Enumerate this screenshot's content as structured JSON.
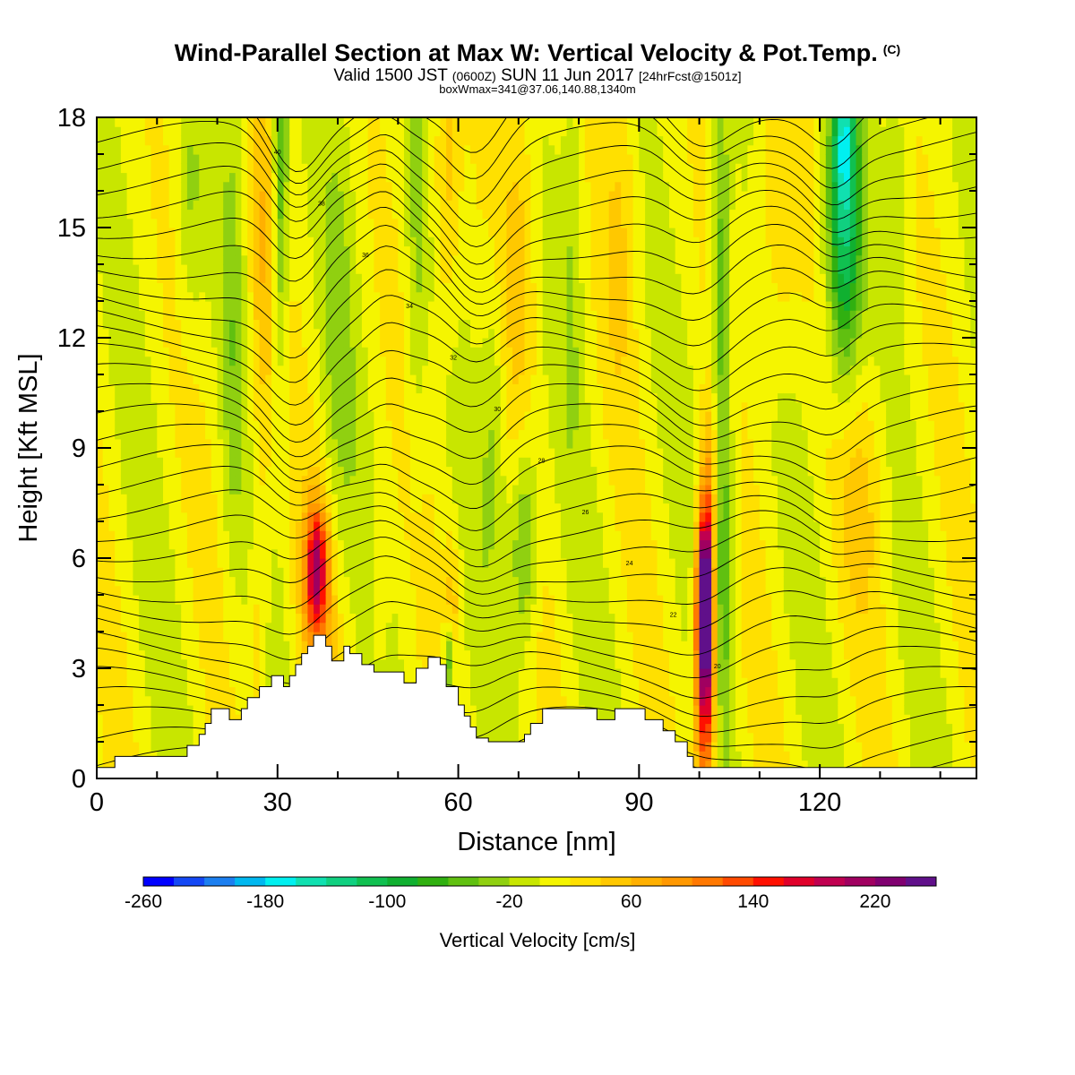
{
  "header": {
    "title": "Wind-Parallel Section at Max W: Vertical Velocity & Pot.Temp.",
    "title_mark": "(C)",
    "valid_prefix": "Valid 1500 JST",
    "valid_utc": "(0600Z)",
    "valid_date": "SUN 11 Jun 2017",
    "forecast": "[24hrFcst@1501z]",
    "box_info": "boxWmax=341@37.06,140.88,1340m"
  },
  "chart_data": {
    "type": "heatmap",
    "xlabel": "Distance [nm]",
    "ylabel": "Height [Kft MSL]",
    "x_ticks": [
      "0",
      "30",
      "60",
      "90",
      "120"
    ],
    "y_ticks": [
      "0",
      "3",
      "6",
      "9",
      "12",
      "15",
      "18"
    ],
    "xlim": [
      0,
      146
    ],
    "ylim": [
      0,
      18
    ],
    "colorbar": {
      "label": "Vertical Velocity [cm/s]",
      "tick_labels": [
        "-260",
        "-180",
        "-100",
        "-20",
        "60",
        "140",
        "220"
      ],
      "levels": [
        -260,
        -240,
        -220,
        -200,
        -180,
        -160,
        -140,
        -120,
        -100,
        -80,
        -60,
        -40,
        -20,
        0,
        20,
        40,
        60,
        80,
        100,
        120,
        140,
        160,
        180,
        200,
        220,
        240
      ],
      "colors": [
        "#0000ff",
        "#1448f5",
        "#1c7ff0",
        "#00b8f0",
        "#00f0f0",
        "#10e0b0",
        "#10d080",
        "#10c050",
        "#10b030",
        "#30b010",
        "#60c010",
        "#90d010",
        "#c8e600",
        "#f5f500",
        "#ffe000",
        "#ffc800",
        "#ffb000",
        "#ff9800",
        "#ff7800",
        "#ff4a00",
        "#ff1000",
        "#e0002a",
        "#c00050",
        "#a00060",
        "#800070",
        "#60108a"
      ]
    },
    "terrain": [
      [
        0,
        0.3
      ],
      [
        3,
        0.3
      ],
      [
        3,
        0.6
      ],
      [
        15,
        0.6
      ],
      [
        15,
        0.9
      ],
      [
        17,
        0.9
      ],
      [
        17,
        1.2
      ],
      [
        18,
        1.2
      ],
      [
        18,
        1.5
      ],
      [
        19,
        1.5
      ],
      [
        19,
        1.9
      ],
      [
        22,
        1.9
      ],
      [
        22,
        1.6
      ],
      [
        24,
        1.6
      ],
      [
        24,
        1.9
      ],
      [
        25,
        1.9
      ],
      [
        25,
        2.2
      ],
      [
        27,
        2.2
      ],
      [
        27,
        2.5
      ],
      [
        29,
        2.5
      ],
      [
        29,
        2.8
      ],
      [
        31,
        2.8
      ],
      [
        31,
        2.5
      ],
      [
        32,
        2.5
      ],
      [
        32,
        2.8
      ],
      [
        33,
        2.8
      ],
      [
        33,
        3.1
      ],
      [
        34,
        3.1
      ],
      [
        34,
        3.4
      ],
      [
        35,
        3.4
      ],
      [
        35,
        3.6
      ],
      [
        36,
        3.6
      ],
      [
        36,
        3.9
      ],
      [
        38,
        3.9
      ],
      [
        38,
        3.6
      ],
      [
        39,
        3.6
      ],
      [
        39,
        3.2
      ],
      [
        41,
        3.2
      ],
      [
        41,
        3.6
      ],
      [
        42,
        3.6
      ],
      [
        42,
        3.4
      ],
      [
        44,
        3.4
      ],
      [
        44,
        3.1
      ],
      [
        46,
        3.1
      ],
      [
        46,
        2.9
      ],
      [
        51,
        2.9
      ],
      [
        51,
        2.6
      ],
      [
        53,
        2.6
      ],
      [
        53,
        3.0
      ],
      [
        55,
        3.0
      ],
      [
        55,
        3.3
      ],
      [
        57,
        3.3
      ],
      [
        57,
        3.1
      ],
      [
        58,
        3.1
      ],
      [
        58,
        2.5
      ],
      [
        60,
        2.5
      ],
      [
        60,
        2.0
      ],
      [
        61,
        2.0
      ],
      [
        61,
        1.7
      ],
      [
        62,
        1.7
      ],
      [
        62,
        1.4
      ],
      [
        63,
        1.4
      ],
      [
        63,
        1.1
      ],
      [
        65,
        1.1
      ],
      [
        65,
        1.0
      ],
      [
        71,
        1.0
      ],
      [
        71,
        1.2
      ],
      [
        72,
        1.2
      ],
      [
        72,
        1.5
      ],
      [
        74,
        1.5
      ],
      [
        74,
        1.9
      ],
      [
        83,
        1.9
      ],
      [
        83,
        1.6
      ],
      [
        86,
        1.6
      ],
      [
        86,
        1.9
      ],
      [
        91,
        1.9
      ],
      [
        91,
        1.6
      ],
      [
        94,
        1.6
      ],
      [
        94,
        1.3
      ],
      [
        96,
        1.3
      ],
      [
        96,
        1.0
      ],
      [
        98,
        1.0
      ],
      [
        98,
        0.6
      ],
      [
        99,
        0.6
      ],
      [
        99,
        0.3
      ],
      [
        146,
        0.3
      ]
    ],
    "plumes": [
      {
        "x": 36.5,
        "y": 5.8,
        "sx": 1.2,
        "sy": 1.1,
        "w": 140
      },
      {
        "x": 36.5,
        "y": 4.5,
        "sx": 2.2,
        "sy": 2.2,
        "w": 60
      },
      {
        "x": 101,
        "y": 5.0,
        "sx": 0.9,
        "sy": 1.7,
        "w": 260
      },
      {
        "x": 101,
        "y": 2.5,
        "sx": 1.2,
        "sy": 2.5,
        "w": 160
      },
      {
        "x": 102,
        "y": 8.5,
        "sx": 1.2,
        "sy": 1.5,
        "w": 60
      },
      {
        "x": 104,
        "y": 6.5,
        "sx": 1.3,
        "sy": 3.5,
        "w": -70
      },
      {
        "x": 103.5,
        "y": 14.0,
        "sx": 1.0,
        "sy": 4.0,
        "w": -60
      },
      {
        "x": 124,
        "y": 15.0,
        "sx": 2.0,
        "sy": 3.0,
        "w": -130
      },
      {
        "x": 124,
        "y": 17.5,
        "sx": 1.2,
        "sy": 1.2,
        "w": -80
      },
      {
        "x": 30.5,
        "y": 16.0,
        "sx": 0.9,
        "sy": 3.5,
        "w": -70
      },
      {
        "x": 27.5,
        "y": 13.5,
        "sx": 1.5,
        "sy": 4.5,
        "w": 45
      },
      {
        "x": 22.5,
        "y": 12.0,
        "sx": 1.2,
        "sy": 5.0,
        "w": -30
      },
      {
        "x": 15.5,
        "y": 15.5,
        "sx": 1.5,
        "sy": 2.5,
        "w": -30
      },
      {
        "x": 40,
        "y": 12.0,
        "sx": 2.0,
        "sy": 5.0,
        "w": -25
      },
      {
        "x": 58,
        "y": 16.0,
        "sx": 1.5,
        "sy": 3.0,
        "w": 45
      },
      {
        "x": 53,
        "y": 14.0,
        "sx": 1.2,
        "sy": 4.5,
        "w": -30
      },
      {
        "x": 59,
        "y": 4.5,
        "sx": 0.9,
        "sy": 1.6,
        "w": 45
      },
      {
        "x": 58.5,
        "y": 3.2,
        "sx": 0.7,
        "sy": 0.8,
        "w": -90
      },
      {
        "x": 71,
        "y": 6.5,
        "sx": 1.6,
        "sy": 2.0,
        "w": -70
      },
      {
        "x": 66,
        "y": 10.0,
        "sx": 1.6,
        "sy": 3.0,
        "w": -35
      },
      {
        "x": 70,
        "y": 14.5,
        "sx": 2.2,
        "sy": 3.5,
        "w": 40
      },
      {
        "x": 79,
        "y": 15.0,
        "sx": 1.2,
        "sy": 4.0,
        "w": -25
      },
      {
        "x": 87,
        "y": 15.5,
        "sx": 2.0,
        "sy": 3.5,
        "w": 30
      },
      {
        "x": 113,
        "y": 15.5,
        "sx": 2.5,
        "sy": 3.5,
        "w": 35
      },
      {
        "x": 127,
        "y": 8.0,
        "sx": 3.0,
        "sy": 2.5,
        "w": 30
      },
      {
        "x": 133,
        "y": 16.5,
        "sx": 1.5,
        "sy": 2.0,
        "w": -25
      },
      {
        "x": 47,
        "y": 5.5,
        "sx": 1.0,
        "sy": 2.0,
        "w": 30
      },
      {
        "x": 27,
        "y": 4.0,
        "sx": 1.0,
        "sy": 2.5,
        "w": 30
      }
    ],
    "contour_labels": [
      "40",
      "38",
      "36",
      "34",
      "32",
      "30",
      "28",
      "26",
      "24",
      "22",
      "20"
    ]
  }
}
